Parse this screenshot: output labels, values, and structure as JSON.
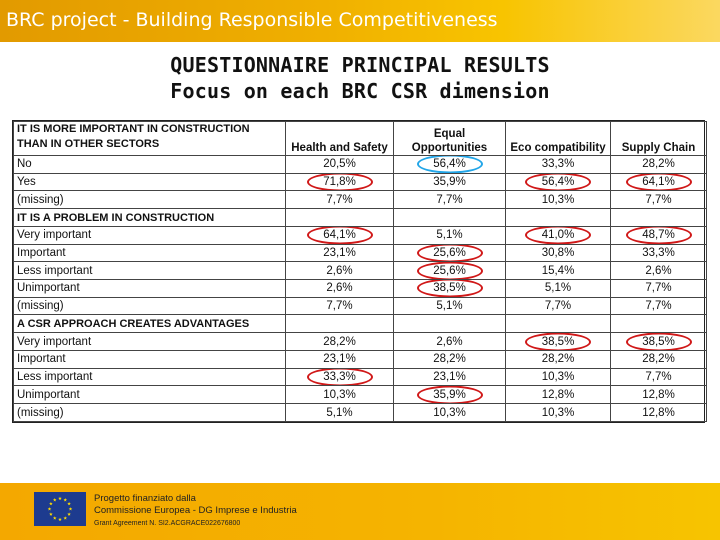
{
  "header": {
    "title": "BRC project - Building Responsible Competitiveness"
  },
  "slide": {
    "title_line1": "QUESTIONNAIRE PRINCIPAL RESULTS",
    "title_line2": "Focus on each BRC CSR dimension"
  },
  "table": {
    "corner_line1": "IT IS MORE IMPORTANT IN CONSTRUCTION",
    "corner_line2": "THAN IN OTHER SECTORS",
    "columns": [
      "Health and Safety",
      "Equal Opportunities",
      "Eco compatibility",
      "Supply Chain"
    ],
    "section1": {
      "rows": [
        {
          "label": "No",
          "values": [
            "20,5%",
            "56,4%",
            "33,3%",
            "28,2%"
          ],
          "marks": [
            "",
            "blue",
            "",
            ""
          ]
        },
        {
          "label": "Yes",
          "values": [
            "71,8%",
            "35,9%",
            "56,4%",
            "64,1%"
          ],
          "marks": [
            "red",
            "",
            "red",
            "red"
          ]
        },
        {
          "label": "(missing)",
          "values": [
            "7,7%",
            "7,7%",
            "10,3%",
            "7,7%"
          ],
          "marks": [
            "",
            "",
            "",
            ""
          ]
        }
      ]
    },
    "section2": {
      "title": "IT IS A PROBLEM IN CONSTRUCTION",
      "rows": [
        {
          "label": "Very important",
          "values": [
            "64,1%",
            "5,1%",
            "41,0%",
            "48,7%"
          ],
          "marks": [
            "red",
            "",
            "red",
            "red"
          ]
        },
        {
          "label": "Important",
          "values": [
            "23,1%",
            "25,6%",
            "30,8%",
            "33,3%"
          ],
          "marks": [
            "",
            "red",
            "",
            ""
          ]
        },
        {
          "label": "Less important",
          "values": [
            "2,6%",
            "25,6%",
            "15,4%",
            "2,6%"
          ],
          "marks": [
            "",
            "red",
            "",
            ""
          ]
        },
        {
          "label": "Unimportant",
          "values": [
            "2,6%",
            "38,5%",
            "5,1%",
            "7,7%"
          ],
          "marks": [
            "",
            "red",
            "",
            ""
          ]
        },
        {
          "label": "(missing)",
          "values": [
            "7,7%",
            "5,1%",
            "7,7%",
            "7,7%"
          ],
          "marks": [
            "",
            "",
            "",
            ""
          ]
        }
      ]
    },
    "section3": {
      "title": "A CSR APPROACH CREATES ADVANTAGES",
      "rows": [
        {
          "label": "Very important",
          "values": [
            "28,2%",
            "2,6%",
            "38,5%",
            "38,5%"
          ],
          "marks": [
            "",
            "",
            "red",
            "red"
          ]
        },
        {
          "label": "Important",
          "values": [
            "23,1%",
            "28,2%",
            "28,2%",
            "28,2%"
          ],
          "marks": [
            "",
            "",
            "",
            ""
          ]
        },
        {
          "label": "Less important",
          "values": [
            "33,3%",
            "23,1%",
            "10,3%",
            "7,7%"
          ],
          "marks": [
            "red",
            "",
            "",
            ""
          ]
        },
        {
          "label": "Unimportant",
          "values": [
            "10,3%",
            "35,9%",
            "12,8%",
            "12,8%"
          ],
          "marks": [
            "",
            "red",
            "",
            ""
          ]
        },
        {
          "label": "(missing)",
          "values": [
            "5,1%",
            "10,3%",
            "10,3%",
            "12,8%"
          ],
          "marks": [
            "",
            "",
            "",
            ""
          ]
        }
      ]
    }
  },
  "footer": {
    "line1": "Progetto finanziato dalla",
    "line2": "Commissione Europea - DG Imprese e Industria",
    "line3": "Grant Agreement N. SI2.ACGRACE022676800",
    "flag_icon": "eu-flag-icon",
    "colors": {
      "flag_blue": "#1d3b8f",
      "star_yellow": "#ffdd00",
      "ring_red": "#d01818",
      "ring_blue": "#22a6e8"
    }
  }
}
